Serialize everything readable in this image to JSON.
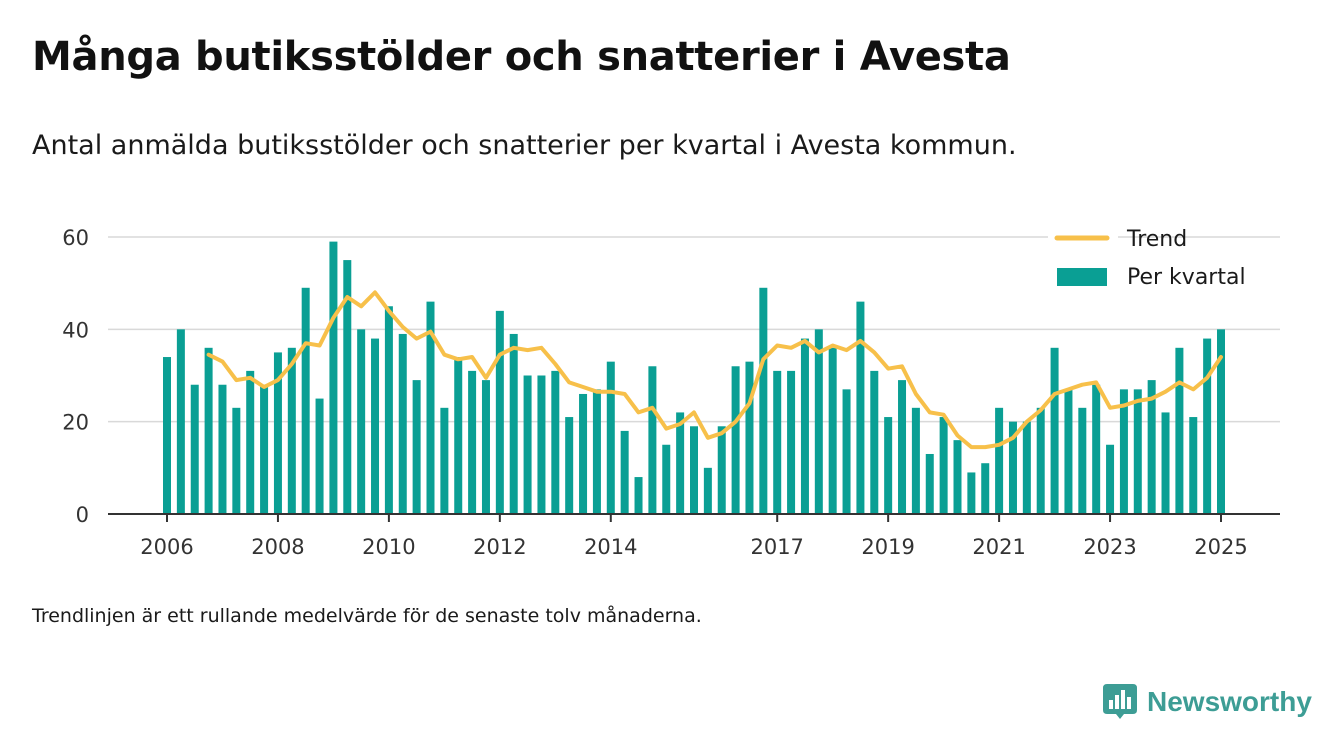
{
  "title": "Många butiksstölder och snatterier i Avesta",
  "subtitle": "Antal anmälda butiksstölder och snatterier per kvartal i Avesta kommun.",
  "footnote": "Trendlinjen är ett rullande medelvärde för de senaste tolv månaderna.",
  "brand": "Newsworthy",
  "colors": {
    "bar": "#0a9f94",
    "trend": "#f7c04a",
    "grid": "#d9d9d9",
    "axis": "#333333",
    "brand": "#3d9d95"
  },
  "chart_data": {
    "type": "bar",
    "title": "Många butiksstölder och snatterier i Avesta",
    "xlabel": "",
    "ylabel": "",
    "ylim": [
      0,
      60
    ],
    "yticks": [
      0,
      20,
      40,
      60
    ],
    "xticks": [
      "2006",
      "2008",
      "2010",
      "2012",
      "2014",
      "2017",
      "2019",
      "2021",
      "2023",
      "2025"
    ],
    "grid": true,
    "legend_position": "top-right",
    "categories": [
      "2006 Q1",
      "2006 Q2",
      "2006 Q3",
      "2006 Q4",
      "2007 Q1",
      "2007 Q2",
      "2007 Q3",
      "2007 Q4",
      "2008 Q1",
      "2008 Q2",
      "2008 Q3",
      "2008 Q4",
      "2009 Q1",
      "2009 Q2",
      "2009 Q3",
      "2009 Q4",
      "2010 Q1",
      "2010 Q2",
      "2010 Q3",
      "2010 Q4",
      "2011 Q1",
      "2011 Q2",
      "2011 Q3",
      "2011 Q4",
      "2012 Q1",
      "2012 Q2",
      "2012 Q3",
      "2012 Q4",
      "2013 Q1",
      "2013 Q2",
      "2013 Q3",
      "2013 Q4",
      "2014 Q1",
      "2014 Q2",
      "2014 Q3",
      "2014 Q4",
      "2015 Q1",
      "2015 Q2",
      "2015 Q3",
      "2015 Q4",
      "2016 Q1",
      "2016 Q2",
      "2016 Q3",
      "2016 Q4",
      "2017 Q1",
      "2017 Q2",
      "2017 Q3",
      "2017 Q4",
      "2018 Q1",
      "2018 Q2",
      "2018 Q3",
      "2018 Q4",
      "2019 Q1",
      "2019 Q2",
      "2019 Q3",
      "2019 Q4",
      "2020 Q1",
      "2020 Q2",
      "2020 Q3",
      "2020 Q4",
      "2021 Q1",
      "2021 Q2",
      "2021 Q3",
      "2021 Q4",
      "2022 Q1",
      "2022 Q2",
      "2022 Q3",
      "2022 Q4",
      "2023 Q1",
      "2023 Q2",
      "2023 Q3",
      "2023 Q4",
      "2024 Q1",
      "2024 Q2",
      "2024 Q3",
      "2024 Q4",
      "2025 Q1"
    ],
    "series": [
      {
        "name": "Per kvartal",
        "type": "bar",
        "values": [
          34,
          40,
          28,
          36,
          28,
          23,
          31,
          28,
          35,
          36,
          49,
          25,
          59,
          55,
          40,
          38,
          45,
          39,
          29,
          46,
          23,
          34,
          31,
          29,
          44,
          39,
          30,
          30,
          31,
          21,
          26,
          27,
          33,
          18,
          8,
          32,
          15,
          22,
          19,
          10,
          19,
          32,
          33,
          49,
          31,
          31,
          38,
          40,
          36,
          27,
          46,
          31,
          21,
          29,
          23,
          13,
          21,
          16,
          9,
          11,
          23,
          20,
          20,
          23,
          36,
          27,
          23,
          28,
          15,
          27,
          27,
          29,
          22,
          36,
          21,
          38,
          40
        ]
      },
      {
        "name": "Trend",
        "type": "line",
        "values": [
          null,
          null,
          null,
          34.5,
          33,
          29,
          29.5,
          27.5,
          29,
          32.5,
          37,
          36.5,
          42.5,
          47,
          45,
          48,
          44,
          40.5,
          38,
          39.5,
          34.5,
          33.5,
          34,
          29.5,
          34.5,
          36,
          35.5,
          36,
          32.5,
          28.5,
          27.5,
          26.5,
          26.5,
          26,
          22,
          23,
          18.5,
          19.5,
          22,
          16.5,
          17.5,
          20,
          24,
          33.5,
          36.5,
          36,
          37.5,
          35,
          36.5,
          35.5,
          37.5,
          35,
          31.5,
          32,
          26,
          22,
          21.5,
          17,
          14.5,
          14.5,
          15,
          16.5,
          20,
          22.5,
          26,
          27,
          28,
          28.5,
          23,
          23.5,
          24.5,
          25,
          26.5,
          28.5,
          27,
          29.5,
          34
        ]
      }
    ]
  }
}
